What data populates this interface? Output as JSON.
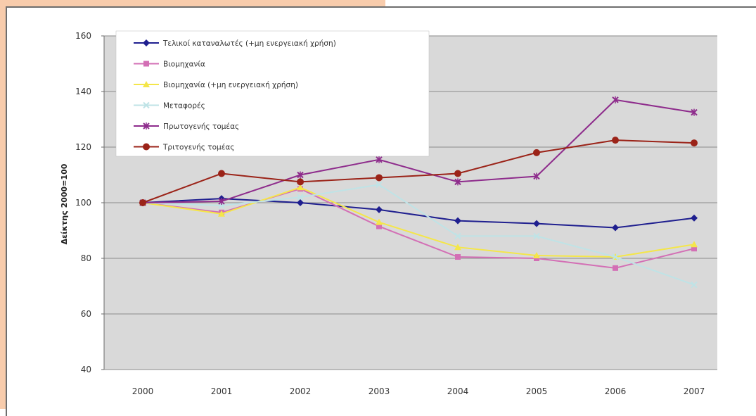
{
  "chart_data": {
    "type": "line",
    "title": "",
    "xlabel": "",
    "ylabel": "Δείκτης 2000=100",
    "ylim": [
      40,
      160
    ],
    "yticks": [
      40,
      60,
      80,
      100,
      120,
      140,
      160
    ],
    "grid": true,
    "legend_position": "top-left",
    "plot_background": "#d9d9d9",
    "categories": [
      "2000",
      "2001",
      "2002",
      "2003",
      "2004",
      "2005",
      "2006",
      "2007"
    ],
    "series": [
      {
        "name": "Τελικοί καταναλωτές (+μη ενεργειακή χρήση)",
        "color": "#1f1f8f",
        "marker": "diamond",
        "values": [
          100,
          101.5,
          100,
          97.5,
          93.5,
          92.5,
          91,
          94.5
        ]
      },
      {
        "name": "Βιομηχανία",
        "color": "#d36fb5",
        "marker": "square",
        "values": [
          100,
          96.5,
          105,
          91.5,
          80.5,
          80,
          76.5,
          83.5
        ]
      },
      {
        "name": "Βιομηχανία (+μη ενεργειακή χρήση)",
        "color": "#f4e64a",
        "marker": "triangle",
        "values": [
          100,
          96,
          105.5,
          93,
          84,
          81,
          80.5,
          85
        ]
      },
      {
        "name": "Μεταφορές",
        "color": "#bfe3e6",
        "marker": "x",
        "values": [
          100,
          99,
          102,
          106.5,
          88,
          88,
          80.5,
          70.5
        ]
      },
      {
        "name": "Πρωτογενής τομέας",
        "color": "#8e2c8c",
        "marker": "star",
        "values": [
          100,
          100.5,
          110,
          115.5,
          107.5,
          109.5,
          137,
          132.5
        ]
      },
      {
        "name": "Τριτογενής τομέας",
        "color": "#9b2318",
        "marker": "circle",
        "values": [
          100,
          110.5,
          107.5,
          109,
          110.5,
          118,
          122.5,
          121.5
        ]
      }
    ]
  }
}
